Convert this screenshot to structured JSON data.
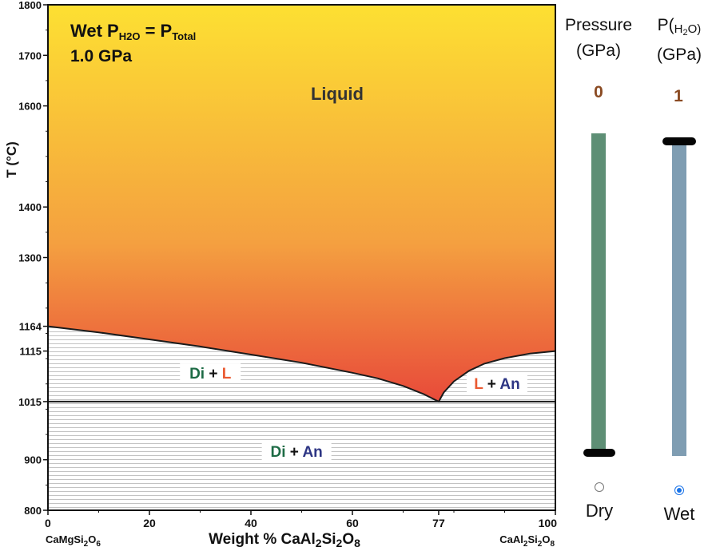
{
  "chart_data": {
    "type": "phase-diagram",
    "conditions": {
      "line1_main": "Wet P",
      "line1_sub1": "H2O",
      "line1_eq": " = P",
      "line1_sub2": "Total",
      "line2": "1.0 GPa"
    },
    "ylabel": "T (°C)",
    "xlabel": "Weight % CaAl2Si2O8",
    "x_end_left": "CaMgSi2O6",
    "x_end_right": "CaAl2Si2O8",
    "xlim": [
      0,
      100
    ],
    "ylim": [
      800,
      1800
    ],
    "x_ticks": [
      {
        "value": 0,
        "label": "0"
      },
      {
        "value": 20,
        "label": "20"
      },
      {
        "value": 40,
        "label": "40"
      },
      {
        "value": 60,
        "label": "60"
      },
      {
        "value": 77,
        "label": "77"
      },
      {
        "value": 100,
        "label": "100"
      }
    ],
    "y_ticks": [
      {
        "value": 800,
        "label": "800"
      },
      {
        "value": 900,
        "label": "900"
      },
      {
        "value": 1015,
        "label": "1015"
      },
      {
        "value": 1115,
        "label": "1115"
      },
      {
        "value": 1164,
        "label": "1164"
      },
      {
        "value": 1300,
        "label": "1300"
      },
      {
        "value": 1400,
        "label": "1400"
      },
      {
        "value": 1600,
        "label": "1600"
      },
      {
        "value": 1700,
        "label": "1700"
      },
      {
        "value": 1800,
        "label": "1800"
      }
    ],
    "eutectic": {
      "x": 77,
      "t": 1015
    },
    "liquidus_di": [
      [
        0,
        1164
      ],
      [
        10,
        1152
      ],
      [
        20,
        1138
      ],
      [
        30,
        1124
      ],
      [
        40,
        1108
      ],
      [
        50,
        1092
      ],
      [
        60,
        1072
      ],
      [
        65,
        1061
      ],
      [
        70,
        1046
      ],
      [
        74,
        1030
      ],
      [
        77,
        1015
      ]
    ],
    "liquidus_an": [
      [
        77,
        1015
      ],
      [
        78,
        1033
      ],
      [
        80,
        1055
      ],
      [
        83,
        1076
      ],
      [
        86,
        1090
      ],
      [
        90,
        1101
      ],
      [
        95,
        1110
      ],
      [
        100,
        1115
      ]
    ],
    "regions": [
      {
        "name": "Liquid",
        "label": "Liquid",
        "color": "#333333",
        "x": 57,
        "t": 1612
      },
      {
        "name": "Di+L",
        "parts": [
          {
            "text": "Di",
            "color": "#1d6b45"
          },
          {
            "text": " + ",
            "color": "#111111"
          },
          {
            "text": "L",
            "color": "#ea5a32"
          }
        ],
        "x": 32,
        "t": 1070
      },
      {
        "name": "L+An",
        "parts": [
          {
            "text": "L",
            "color": "#ea5a32"
          },
          {
            "text": " + ",
            "color": "#111111"
          },
          {
            "text": "An",
            "color": "#2d3584"
          }
        ],
        "x": 88.5,
        "t": 1050
      },
      {
        "name": "Di+An",
        "parts": [
          {
            "text": "Di",
            "color": "#1d6b45"
          },
          {
            "text": " + ",
            "color": "#111111"
          },
          {
            "text": "An",
            "color": "#2d3584"
          }
        ],
        "x": 49,
        "t": 915
      }
    ],
    "gradient": {
      "top": "#fde032",
      "mid": "#f4a040",
      "bottom": "#e84a3a"
    }
  },
  "controls": {
    "pressure": {
      "title_line1": "Pressure",
      "title_line2": "(GPa)",
      "value": "0",
      "value_color": "#8a4a22",
      "bar_color": "#5e8f75",
      "fraction": 0
    },
    "p_h2o": {
      "title_pre": "P(",
      "title_sub_h": "H",
      "title_sub_2": "2",
      "title_post": "O)",
      "title_line2": "(GPa)",
      "value": "1",
      "value_color": "#8a4a22",
      "bar_color": "#7f9db2",
      "fraction": 1
    },
    "mode": {
      "options": [
        {
          "label": "Dry",
          "selected": false
        },
        {
          "label": "Wet",
          "selected": true
        }
      ],
      "accent": "#1a73e8"
    }
  }
}
